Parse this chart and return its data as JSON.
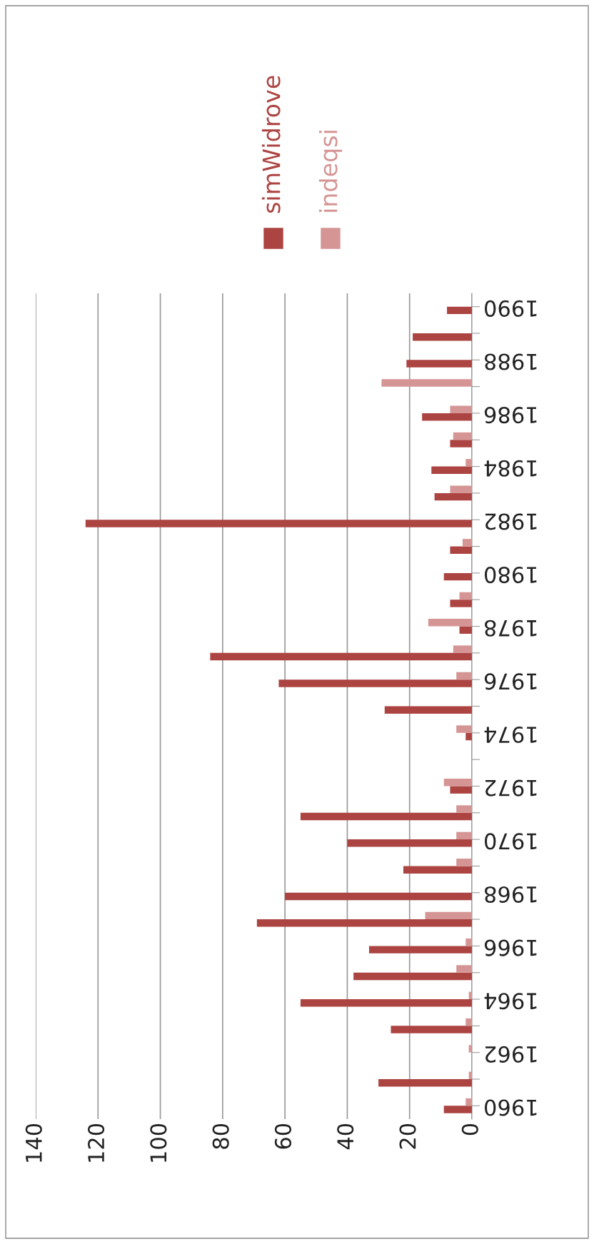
{
  "chart_data": {
    "type": "bar",
    "orientation": "horizontal",
    "categories": [
      "1990",
      null,
      "1988",
      null,
      "1986",
      null,
      "1984",
      null,
      "1982",
      null,
      "1980",
      null,
      "1978",
      null,
      "1976",
      null,
      "1974",
      null,
      "1972",
      null,
      "1970",
      null,
      "1968",
      null,
      "1966",
      null,
      "1964",
      null,
      "1962",
      null,
      "1960"
    ],
    "series": [
      {
        "name": "simWidrove",
        "color": "#ac4442",
        "values": [
          8,
          19,
          21,
          0,
          16,
          7,
          13,
          12,
          124,
          7,
          9,
          7,
          4,
          84,
          62,
          28,
          2,
          0,
          7,
          55,
          40,
          22,
          60,
          69,
          33,
          38,
          55,
          26,
          0,
          30,
          9
        ]
      },
      {
        "name": "indeqsi",
        "color": "#d59594",
        "values": [
          0,
          0,
          0,
          29,
          7,
          6,
          2,
          7,
          0,
          3,
          0,
          4,
          14,
          6,
          5,
          0,
          5,
          0,
          9,
          5,
          5,
          5,
          0,
          15,
          2,
          5,
          1,
          2,
          1,
          1,
          2
        ]
      }
    ],
    "xlim": [
      140,
      0
    ],
    "xticks": [
      140,
      120,
      100,
      80,
      60,
      40,
      20,
      0
    ],
    "grid": "x",
    "legend": "top"
  }
}
